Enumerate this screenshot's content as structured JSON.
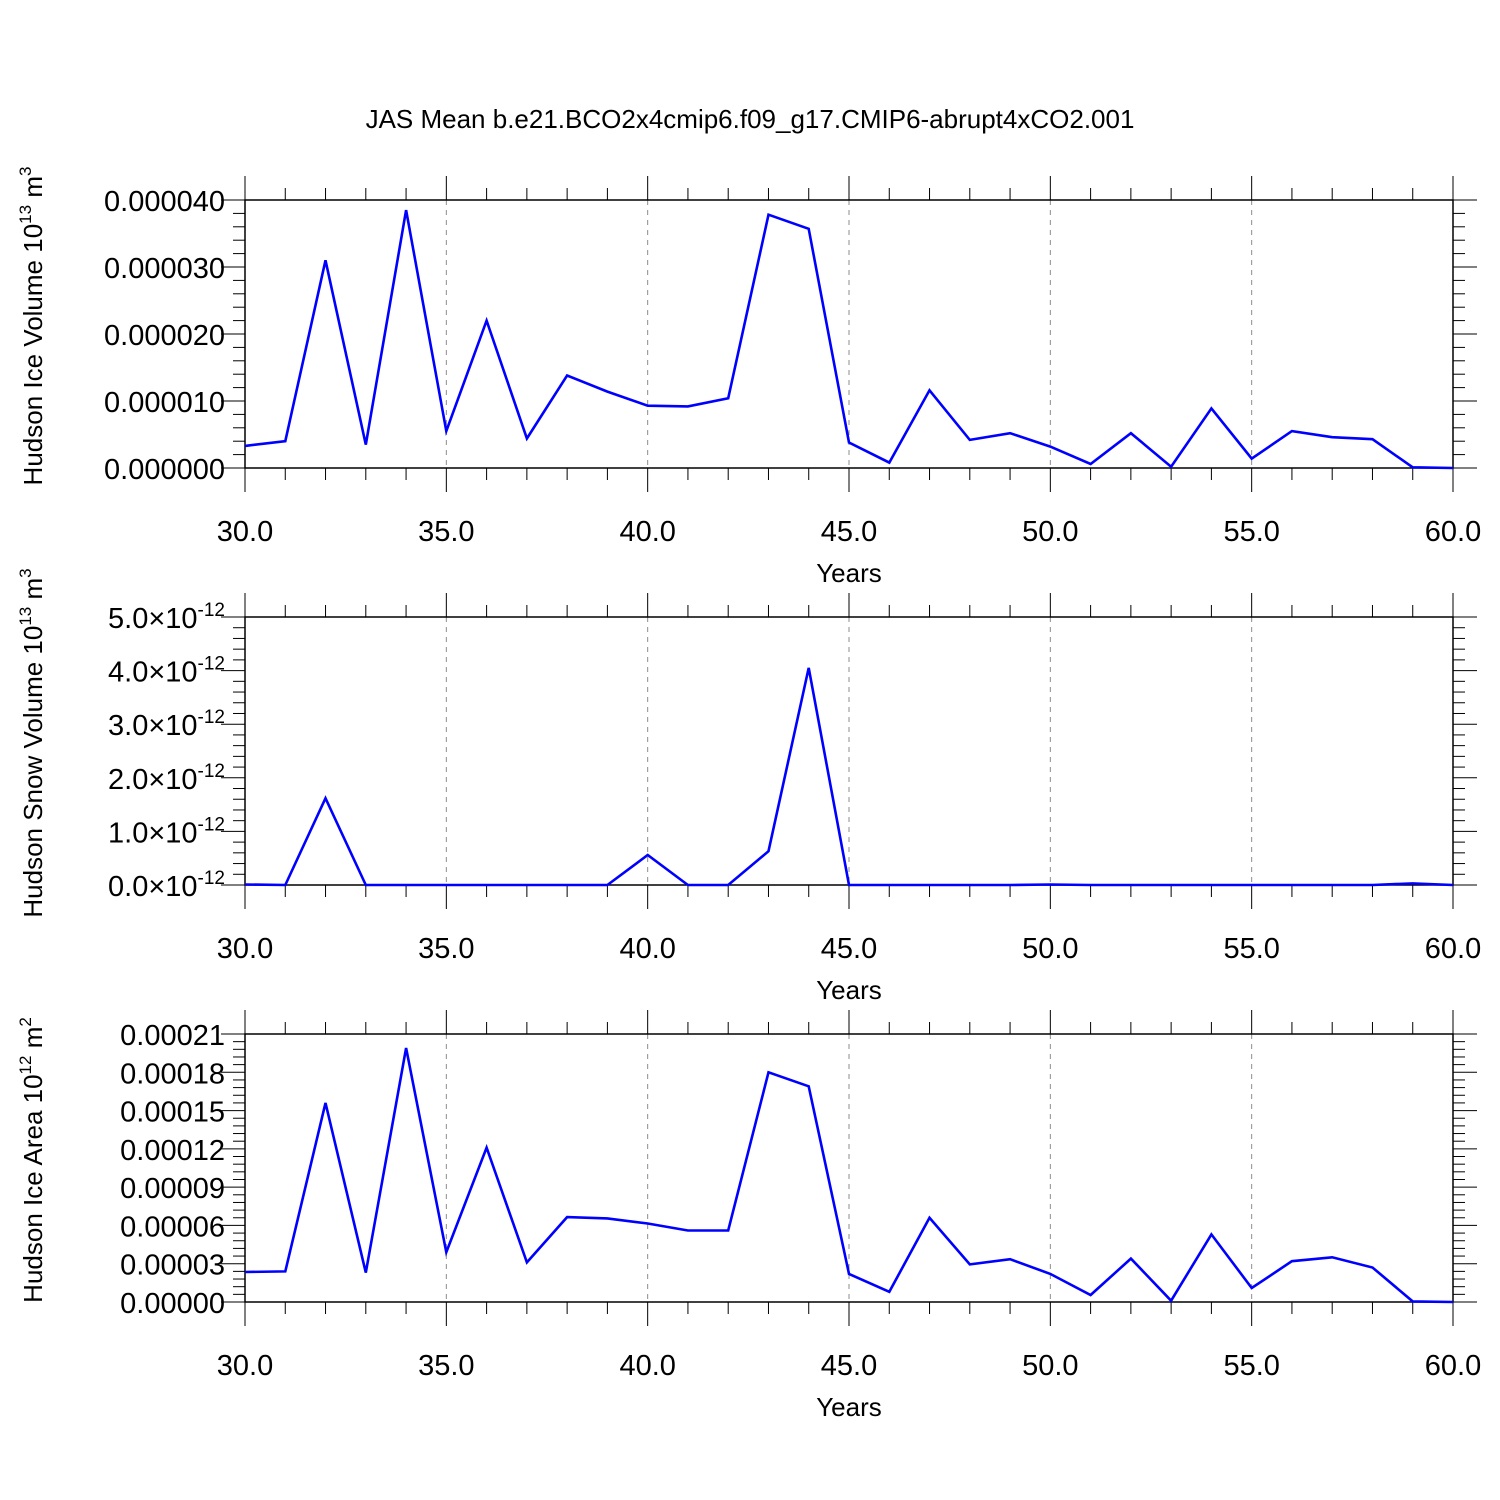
{
  "title": "JAS Mean b.e21.BCO2x4cmip6.f09_g17.CMIP6-abrupt4xCO2.001",
  "colors": {
    "series": "#0000ff",
    "axis": "#000000",
    "grid": "#8c8c8c"
  },
  "chart_data": [
    {
      "type": "line",
      "xlabel": "Years",
      "ylabel": "Hudson Ice Volume 10",
      "ylabel_exp": "13",
      "ylabel_unit": "m",
      "ylabel_unit_exp": "3",
      "xlim": [
        30,
        60
      ],
      "ylim": [
        0,
        4e-05
      ],
      "x_ticks": [
        30,
        35,
        40,
        45,
        50,
        55,
        60
      ],
      "x_tick_labels": [
        "30.0",
        "35.0",
        "40.0",
        "45.0",
        "50.0",
        "55.0",
        "60.0"
      ],
      "y_ticks": [
        0,
        1e-05,
        2e-05,
        3e-05,
        4e-05
      ],
      "y_tick_labels": [
        "0.000000",
        "0.000010",
        "0.000020",
        "0.000030",
        "0.000040"
      ],
      "y_tick_exponent": "",
      "grid": "vertical dashed at x major ticks",
      "x": [
        30,
        31,
        32,
        33,
        34,
        35,
        36,
        37,
        38,
        39,
        40,
        41,
        42,
        43,
        44,
        45,
        46,
        47,
        48,
        49,
        50,
        51,
        52,
        53,
        54,
        55,
        56,
        57,
        58,
        59,
        60
      ],
      "series": [
        {
          "values": [
            3.3e-06,
            4e-06,
            3.1e-05,
            3.5e-06,
            3.85e-05,
            5.5e-06,
            2.2e-05,
            4.4e-06,
            1.38e-05,
            1.14e-05,
            9.3e-06,
            9.2e-06,
            1.04e-05,
            3.78e-05,
            3.57e-05,
            3.8e-06,
            8e-07,
            1.16e-05,
            4.2e-06,
            5.2e-06,
            3.2e-06,
            6e-07,
            5.2e-06,
            2e-07,
            8.9e-06,
            1.4e-06,
            5.5e-06,
            4.6e-06,
            4.3e-06,
            1e-07,
            0.0
          ]
        }
      ]
    },
    {
      "type": "line",
      "xlabel": "Years",
      "ylabel": "Hudson Snow Volume 10",
      "ylabel_exp": "13",
      "ylabel_unit": "m",
      "ylabel_unit_exp": "3",
      "xlim": [
        30,
        60
      ],
      "ylim": [
        0,
        5e-12
      ],
      "x_ticks": [
        30,
        35,
        40,
        45,
        50,
        55,
        60
      ],
      "x_tick_labels": [
        "30.0",
        "35.0",
        "40.0",
        "45.0",
        "50.0",
        "55.0",
        "60.0"
      ],
      "y_ticks": [
        0,
        1e-12,
        2e-12,
        3e-12,
        4e-12,
        5e-12
      ],
      "y_tick_labels": [
        "0.0×10",
        "1.0×10",
        "2.0×10",
        "3.0×10",
        "4.0×10",
        "5.0×10"
      ],
      "y_tick_exponent": "-12",
      "grid": "vertical dashed at x major ticks",
      "x": [
        30,
        31,
        32,
        33,
        34,
        35,
        36,
        37,
        38,
        39,
        40,
        41,
        42,
        43,
        44,
        45,
        46,
        47,
        48,
        49,
        50,
        51,
        52,
        53,
        54,
        55,
        56,
        57,
        58,
        59,
        60
      ],
      "series": [
        {
          "values": [
            1e-14,
            0,
            1.62e-12,
            0,
            0,
            0,
            0,
            0,
            0,
            0,
            5.6e-13,
            0,
            0,
            6.3e-13,
            4.05e-12,
            0,
            0,
            0,
            0,
            0,
            1e-14,
            0,
            0,
            0,
            0,
            0,
            0,
            0,
            0,
            3e-14,
            0
          ]
        }
      ]
    },
    {
      "type": "line",
      "xlabel": "Years",
      "ylabel": "Hudson Ice Area 10",
      "ylabel_exp": "12",
      "ylabel_unit": "m",
      "ylabel_unit_exp": "2",
      "xlim": [
        30,
        60
      ],
      "ylim": [
        0,
        0.00021
      ],
      "x_ticks": [
        30,
        35,
        40,
        45,
        50,
        55,
        60
      ],
      "x_tick_labels": [
        "30.0",
        "35.0",
        "40.0",
        "45.0",
        "50.0",
        "55.0",
        "60.0"
      ],
      "y_ticks": [
        0,
        3e-05,
        6e-05,
        9e-05,
        0.00012,
        0.00015,
        0.00018,
        0.00021
      ],
      "y_tick_labels": [
        "0.00000",
        "0.00003",
        "0.00006",
        "0.00009",
        "0.00012",
        "0.00015",
        "0.00018",
        "0.00021"
      ],
      "y_tick_exponent": "",
      "grid": "vertical dashed at x major ticks",
      "x": [
        30,
        31,
        32,
        33,
        34,
        35,
        36,
        37,
        38,
        39,
        40,
        41,
        42,
        43,
        44,
        45,
        46,
        47,
        48,
        49,
        50,
        51,
        52,
        53,
        54,
        55,
        56,
        57,
        58,
        59,
        60
      ],
      "series": [
        {
          "values": [
            2.35e-05,
            2.4e-05,
            0.000156,
            2.3e-05,
            0.000199,
            3.9e-05,
            0.000121,
            3.1e-05,
            6.65e-05,
            6.55e-05,
            6.15e-05,
            5.6e-05,
            5.6e-05,
            0.00018,
            0.000169,
            2.2e-05,
            8e-06,
            6.6e-05,
            2.95e-05,
            3.35e-05,
            2.2e-05,
            5.5e-06,
            3.4e-05,
            1e-06,
            5.3e-05,
            1.1e-05,
            3.2e-05,
            3.5e-05,
            2.7e-05,
            5e-07,
            0.0
          ]
        }
      ]
    }
  ]
}
